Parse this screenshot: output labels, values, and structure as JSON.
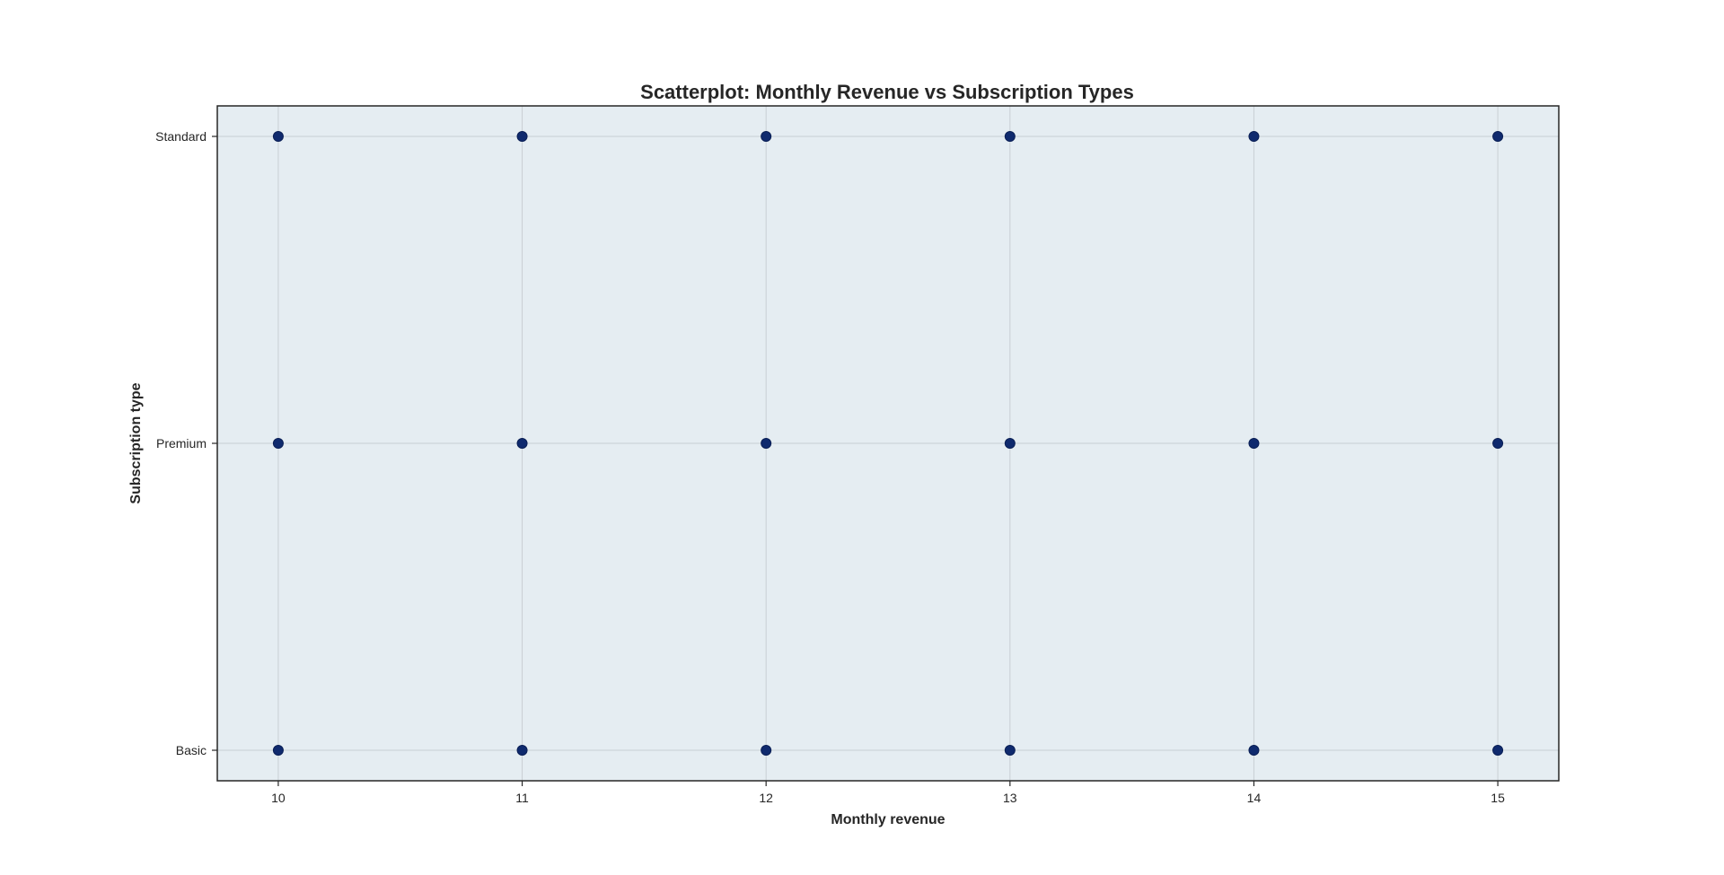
{
  "chart_data": {
    "type": "scatter",
    "title": "Scatterplot: Monthly Revenue vs Subscription Types",
    "xlabel": "Monthly revenue",
    "ylabel": "Subscription type",
    "x_ticks": [
      10,
      11,
      12,
      13,
      14,
      15
    ],
    "xlim": [
      9.75,
      15.25
    ],
    "y_categories": [
      "Basic",
      "Premium",
      "Standard"
    ],
    "grid": true,
    "colors": {
      "plot_background": "#e5edf2",
      "grid": "#c8cfd4",
      "marker": "#0f2a6e",
      "spine": "#262626"
    },
    "series": [
      {
        "points": [
          {
            "x": 10,
            "y": "Standard"
          },
          {
            "x": 11,
            "y": "Standard"
          },
          {
            "x": 12,
            "y": "Standard"
          },
          {
            "x": 13,
            "y": "Standard"
          },
          {
            "x": 14,
            "y": "Standard"
          },
          {
            "x": 15,
            "y": "Standard"
          },
          {
            "x": 10,
            "y": "Premium"
          },
          {
            "x": 11,
            "y": "Premium"
          },
          {
            "x": 12,
            "y": "Premium"
          },
          {
            "x": 13,
            "y": "Premium"
          },
          {
            "x": 14,
            "y": "Premium"
          },
          {
            "x": 15,
            "y": "Premium"
          },
          {
            "x": 10,
            "y": "Basic"
          },
          {
            "x": 11,
            "y": "Basic"
          },
          {
            "x": 12,
            "y": "Basic"
          },
          {
            "x": 13,
            "y": "Basic"
          },
          {
            "x": 14,
            "y": "Basic"
          },
          {
            "x": 15,
            "y": "Basic"
          }
        ]
      }
    ]
  }
}
